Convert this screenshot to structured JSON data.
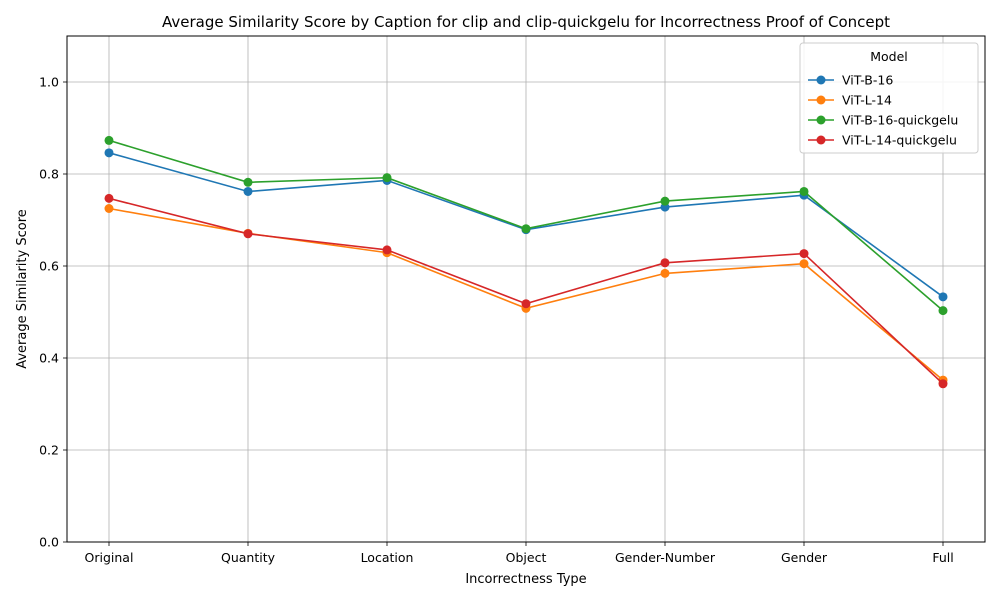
{
  "chart_data": {
    "type": "line",
    "title": "Average Similarity Score by Caption for clip and clip-quickgelu for Incorrectness Proof of Concept",
    "xlabel": "Incorrectness Type",
    "ylabel": "Average Similarity Score",
    "categories": [
      "Original",
      "Quantity",
      "Location",
      "Object",
      "Gender-Number",
      "Gender",
      "Full"
    ],
    "ylim": [
      0,
      1.1
    ],
    "yticks": [
      "0.0",
      "0.2",
      "0.4",
      "0.6",
      "0.8",
      "1.0"
    ],
    "grid": true,
    "legend": {
      "title": "Model",
      "placement": "top-right"
    },
    "series": [
      {
        "name": "ViT-B-16",
        "color": "#1f77b4",
        "values": [
          0.846,
          0.762,
          0.786,
          0.679,
          0.728,
          0.754,
          0.533
        ]
      },
      {
        "name": "ViT-L-14",
        "color": "#ff7f0e",
        "values": [
          0.725,
          0.671,
          0.629,
          0.508,
          0.584,
          0.605,
          0.352
        ]
      },
      {
        "name": "ViT-B-16-quickgelu",
        "color": "#2ca02c",
        "values": [
          0.873,
          0.782,
          0.792,
          0.681,
          0.741,
          0.762,
          0.503
        ]
      },
      {
        "name": "ViT-L-14-quickgelu",
        "color": "#d62728",
        "values": [
          0.747,
          0.67,
          0.635,
          0.518,
          0.607,
          0.627,
          0.344
        ]
      }
    ]
  }
}
